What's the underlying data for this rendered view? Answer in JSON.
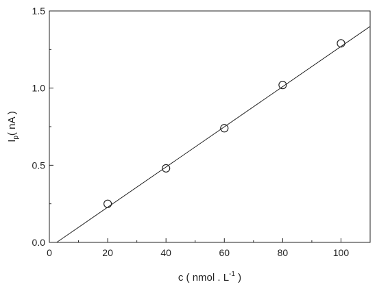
{
  "chart_data": {
    "type": "scatter",
    "xlabel": {
      "main": "c ( nmol . L",
      "superscript": "-1",
      "tail": " )"
    },
    "ylabel": {
      "main": "I",
      "subscript": "p",
      "tail": "( nA )"
    },
    "xlim": [
      0,
      110
    ],
    "ylim": [
      0,
      1.5
    ],
    "x_ticks": [
      0,
      20,
      40,
      60,
      80,
      100
    ],
    "x_tick_labels": [
      "0",
      "20",
      "40",
      "60",
      "80",
      "100"
    ],
    "y_ticks": [
      0,
      0.5,
      1.0,
      1.5
    ],
    "y_tick_labels": [
      "0.0",
      "0.5",
      "1.0",
      "1.5"
    ],
    "grid": false,
    "series": [
      {
        "marker": "open-circle",
        "x": [
          20,
          40,
          60,
          80,
          100
        ],
        "y": [
          0.25,
          0.48,
          0.74,
          1.02,
          1.29
        ]
      }
    ],
    "fit_line": {
      "x": [
        2.5,
        110
      ],
      "y": [
        0.0,
        1.4
      ]
    },
    "colors": {
      "axis": "#222222",
      "marker": "#222222",
      "line": "#222222"
    }
  }
}
